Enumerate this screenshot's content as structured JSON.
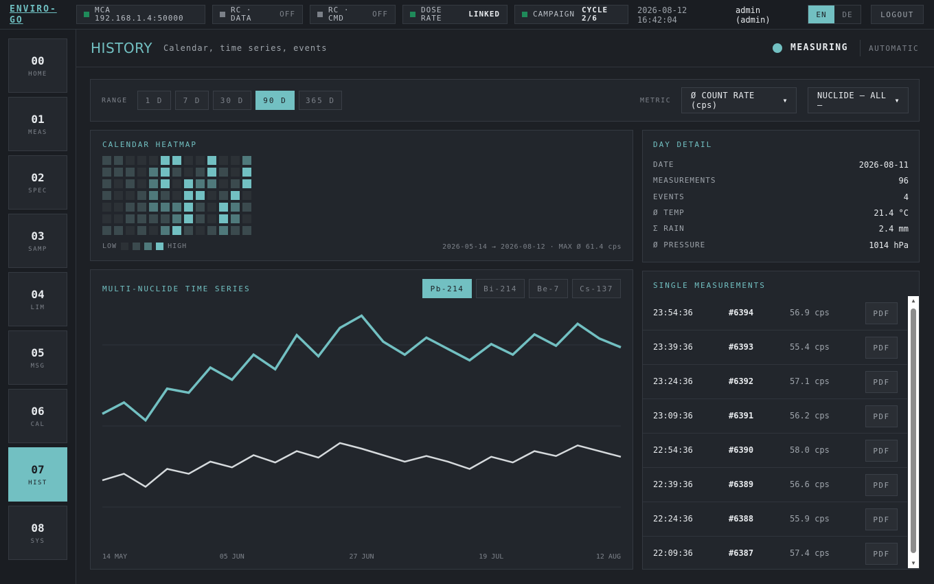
{
  "app": {
    "logo": "ENVIRO-GO"
  },
  "topbar": {
    "mca": {
      "label": "MCA 192.168.1.4:50000",
      "status_color": "#1f8a5a"
    },
    "rc_data": {
      "label": "RC · DATA",
      "value": "OFF",
      "status_color": "#7b8088"
    },
    "rc_cmd": {
      "label": "RC · CMD",
      "value": "OFF",
      "status_color": "#7b8088"
    },
    "dose_rate": {
      "label": "DOSE RATE",
      "value": "LINKED",
      "status_color": "#1f8a5a"
    },
    "campaign": {
      "label": "CAMPAIGN",
      "value": "CYCLE 2/6",
      "status_color": "#1f8a5a"
    },
    "date": "2026-08-12",
    "time": "16:42:04",
    "user_name": "admin",
    "user_role": "(admin)",
    "languages": [
      "EN",
      "DE"
    ],
    "active_language": "EN",
    "logout_label": "LOGOUT"
  },
  "sidebar": {
    "items": [
      {
        "num": "00",
        "label": "HOME"
      },
      {
        "num": "01",
        "label": "MEAS"
      },
      {
        "num": "02",
        "label": "SPEC"
      },
      {
        "num": "03",
        "label": "SAMP"
      },
      {
        "num": "04",
        "label": "LIM"
      },
      {
        "num": "05",
        "label": "MSG"
      },
      {
        "num": "06",
        "label": "CAL"
      },
      {
        "num": "07",
        "label": "HIST"
      },
      {
        "num": "08",
        "label": "SYS"
      }
    ],
    "active_index": 7
  },
  "header": {
    "title": "HISTORY",
    "subtitle": "Calendar, time series, events",
    "status": "MEASURING",
    "mode": "AUTOMATIC"
  },
  "range": {
    "label": "RANGE",
    "options": [
      "1 D",
      "7 D",
      "30 D",
      "90 D",
      "365 D"
    ],
    "selected": "90 D",
    "metric_label": "METRIC",
    "metric_value": "Ø COUNT RATE (cps)",
    "nuclide_value": "NUCLIDE — ALL —"
  },
  "heatmap": {
    "title": "CALENDAR HEATMAP",
    "legend_low": "LOW",
    "legend_high": "HIGH",
    "range_text": "2026-05-14 → 2026-08-12 · MAX Ø 61.4 cps",
    "levels_colors": [
      "#2c3136",
      "#3b4a4e",
      "#4f797b",
      "#72c0c2"
    ],
    "weeks": [
      [
        1,
        1,
        1,
        1,
        0,
        0,
        1
      ],
      [
        1,
        1,
        0,
        0,
        0,
        0,
        1
      ],
      [
        0,
        1,
        1,
        0,
        1,
        1,
        0
      ],
      [
        0,
        0,
        0,
        1,
        1,
        1,
        1
      ],
      [
        0,
        2,
        2,
        2,
        2,
        1,
        0
      ],
      [
        3,
        3,
        3,
        1,
        2,
        1,
        2
      ],
      [
        3,
        1,
        0,
        0,
        2,
        2,
        3
      ],
      [
        0,
        0,
        3,
        3,
        3,
        3,
        1
      ],
      [
        0,
        1,
        2,
        3,
        1,
        1,
        0
      ],
      [
        3,
        3,
        2,
        0,
        0,
        0,
        1
      ],
      [
        0,
        1,
        0,
        1,
        3,
        3,
        2
      ],
      [
        0,
        0,
        1,
        3,
        2,
        2,
        1
      ],
      [
        2,
        3,
        3,
        0,
        1,
        0,
        1
      ]
    ]
  },
  "day_detail": {
    "title": "DAY DETAIL",
    "rows": [
      {
        "label": "DATE",
        "value": "2026-08-11"
      },
      {
        "label": "MEASUREMENTS",
        "value": "96"
      },
      {
        "label": "EVENTS",
        "value": "4"
      },
      {
        "label": "Ø TEMP",
        "value": "21.4 °C"
      },
      {
        "label": "Σ RAIN",
        "value": "2.4 mm"
      },
      {
        "label": "Ø PRESSURE",
        "value": "1014 hPa"
      }
    ]
  },
  "timeseries": {
    "title": "MULTI-NUCLIDE TIME SERIES",
    "nuclides": [
      "Pb-214",
      "Bi-214",
      "Be-7",
      "Cs-137"
    ],
    "selected": "Pb-214"
  },
  "chart_data": {
    "type": "line",
    "title": "MULTI-NUCLIDE TIME SERIES",
    "x_tick_labels": [
      "14 MAY",
      "05 JUN",
      "27 JUN",
      "19 JUL",
      "12 AUG"
    ],
    "ylim": [
      0,
      3
    ],
    "grid": true,
    "series": [
      {
        "name": "Pb-214",
        "color": "#72c0c2",
        "values": [
          1.65,
          1.79,
          1.57,
          1.96,
          1.91,
          2.22,
          2.07,
          2.38,
          2.2,
          2.62,
          2.36,
          2.71,
          2.86,
          2.54,
          2.38,
          2.59,
          2.45,
          2.31,
          2.51,
          2.38,
          2.63,
          2.49,
          2.76,
          2.58,
          2.47
        ]
      },
      {
        "name": "Bi-214",
        "color": "#d6dadd",
        "values": [
          0.83,
          0.91,
          0.75,
          0.97,
          0.91,
          1.06,
          0.99,
          1.14,
          1.05,
          1.19,
          1.11,
          1.29,
          1.22,
          1.14,
          1.06,
          1.13,
          1.06,
          0.97,
          1.12,
          1.05,
          1.19,
          1.13,
          1.26,
          1.19,
          1.12
        ]
      }
    ]
  },
  "measurements": {
    "title": "SINGLE MEASUREMENTS",
    "pdf_label": "PDF",
    "rows": [
      {
        "time": "23:54:36",
        "id": "#6394",
        "value": "56.9 cps"
      },
      {
        "time": "23:39:36",
        "id": "#6393",
        "value": "55.4 cps"
      },
      {
        "time": "23:24:36",
        "id": "#6392",
        "value": "57.1 cps"
      },
      {
        "time": "23:09:36",
        "id": "#6391",
        "value": "56.2 cps"
      },
      {
        "time": "22:54:36",
        "id": "#6390",
        "value": "58.0 cps"
      },
      {
        "time": "22:39:36",
        "id": "#6389",
        "value": "56.6 cps"
      },
      {
        "time": "22:24:36",
        "id": "#6388",
        "value": "55.9 cps"
      },
      {
        "time": "22:09:36",
        "id": "#6387",
        "value": "57.4 cps"
      }
    ]
  }
}
